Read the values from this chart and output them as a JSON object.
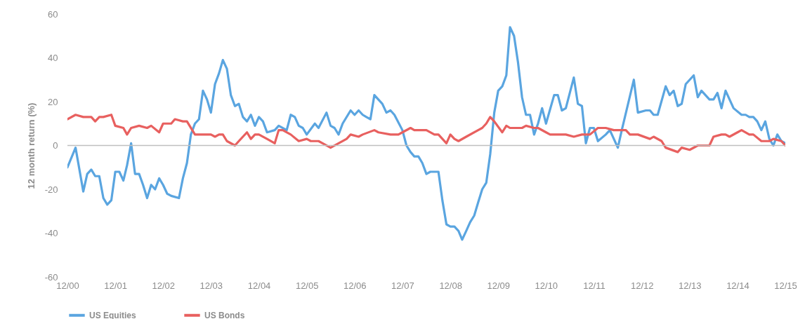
{
  "chart_data": {
    "type": "line",
    "ylabel": "12 month return (%)",
    "xlim": [
      "2000-12",
      "2015-12"
    ],
    "xticks": [
      {
        "value": "2000-12",
        "label": "12/00"
      },
      {
        "value": "2001-12",
        "label": "12/01"
      },
      {
        "value": "2002-12",
        "label": "12/02"
      },
      {
        "value": "2003-12",
        "label": "12/03"
      },
      {
        "value": "2004-12",
        "label": "12/04"
      },
      {
        "value": "2005-12",
        "label": "12/05"
      },
      {
        "value": "2006-12",
        "label": "12/06"
      },
      {
        "value": "2007-12",
        "label": "12/07"
      },
      {
        "value": "2008-12",
        "label": "12/08"
      },
      {
        "value": "2009-12",
        "label": "12/09"
      },
      {
        "value": "2010-12",
        "label": "12/10"
      },
      {
        "value": "2011-12",
        "label": "12/11"
      },
      {
        "value": "2012-12",
        "label": "12/12"
      },
      {
        "value": "2013-12",
        "label": "12/13"
      },
      {
        "value": "2014-12",
        "label": "12/14"
      },
      {
        "value": "2015-12",
        "label": "12/15"
      }
    ],
    "ylim": [
      -60,
      60
    ],
    "yticks": [
      -60,
      -40,
      -20,
      0,
      20,
      40,
      60
    ],
    "grid": false,
    "legend": "bottom",
    "ref_lines": [
      {
        "axis": "y",
        "value": 0,
        "color": "#bfbfbf"
      }
    ],
    "series": [
      {
        "name": "US Equities",
        "color": "#5aa5e0",
        "x": [
          "2000-12",
          "2001-02",
          "2001-04",
          "2001-05",
          "2001-06",
          "2001-07",
          "2001-08",
          "2001-09",
          "2001-10",
          "2001-11",
          "2001-12",
          "2002-01",
          "2002-02",
          "2002-03",
          "2002-04",
          "2002-05",
          "2002-06",
          "2002-07",
          "2002-08",
          "2002-09",
          "2002-10",
          "2002-11",
          "2002-12",
          "2003-01",
          "2003-02",
          "2003-04",
          "2003-05",
          "2003-06",
          "2003-07",
          "2003-08",
          "2003-09",
          "2003-10",
          "2003-11",
          "2003-12",
          "2004-01",
          "2004-02",
          "2004-03",
          "2004-04",
          "2004-05",
          "2004-06",
          "2004-07",
          "2004-08",
          "2004-09",
          "2004-10",
          "2004-11",
          "2004-12",
          "2005-01",
          "2005-02",
          "2005-04",
          "2005-05",
          "2005-07",
          "2005-08",
          "2005-09",
          "2005-10",
          "2005-11",
          "2005-12",
          "2006-02",
          "2006-03",
          "2006-05",
          "2006-06",
          "2006-07",
          "2006-08",
          "2006-09",
          "2006-11",
          "2006-12",
          "2007-01",
          "2007-02",
          "2007-03",
          "2007-04",
          "2007-05",
          "2007-07",
          "2007-08",
          "2007-09",
          "2007-10",
          "2007-12",
          "2008-01",
          "2008-02",
          "2008-03",
          "2008-04",
          "2008-05",
          "2008-06",
          "2008-07",
          "2008-09",
          "2008-10",
          "2008-11",
          "2008-12",
          "2009-01",
          "2009-02",
          "2009-03",
          "2009-04",
          "2009-05",
          "2009-06",
          "2009-07",
          "2009-08",
          "2009-09",
          "2009-10",
          "2009-11",
          "2009-12",
          "2010-01",
          "2010-02",
          "2010-03",
          "2010-04",
          "2010-05",
          "2010-06",
          "2010-07",
          "2010-08",
          "2010-09",
          "2010-10",
          "2010-11",
          "2010-12",
          "2011-02",
          "2011-03",
          "2011-04",
          "2011-05",
          "2011-07",
          "2011-08",
          "2011-09",
          "2011-10",
          "2011-11",
          "2011-12",
          "2012-01",
          "2012-03",
          "2012-04",
          "2012-06",
          "2012-07",
          "2012-10",
          "2012-11",
          "2013-01",
          "2013-02",
          "2013-03",
          "2013-04",
          "2013-06",
          "2013-07",
          "2013-08",
          "2013-09",
          "2013-10",
          "2013-11",
          "2014-01",
          "2014-02",
          "2014-03",
          "2014-05",
          "2014-06",
          "2014-07",
          "2014-08",
          "2014-09",
          "2014-11",
          "2015-01",
          "2015-02",
          "2015-03",
          "2015-04",
          "2015-05",
          "2015-06",
          "2015-07",
          "2015-08",
          "2015-09",
          "2015-10",
          "2015-11",
          "2015-12"
        ],
        "values": [
          -10,
          -1,
          -21,
          -13,
          -11,
          -14,
          -14,
          -24,
          -27,
          -25,
          -12,
          -12,
          -16,
          -9,
          1,
          -13,
          -13,
          -18,
          -24,
          -18,
          -20,
          -15,
          -18,
          -22,
          -23,
          -24,
          -15,
          -8,
          5,
          10,
          12,
          25,
          21,
          15,
          28,
          33,
          39,
          35,
          23,
          18,
          19,
          13,
          11,
          14,
          9,
          13,
          11,
          6,
          7,
          9,
          7,
          14,
          13,
          9,
          8,
          5,
          10,
          8,
          15,
          9,
          8,
          5,
          10,
          16,
          14,
          16,
          14,
          13,
          12,
          23,
          19,
          15,
          16,
          14,
          7,
          0,
          -3,
          -5,
          -5,
          -8,
          -13,
          -12,
          -12,
          -25,
          -36,
          -37,
          -37,
          -39,
          -43,
          -39,
          -35,
          -32,
          -26,
          -20,
          -17,
          -4,
          15,
          25,
          27,
          32,
          54,
          50,
          38,
          22,
          14,
          14,
          5,
          10,
          17,
          10,
          23,
          23,
          16,
          17,
          31,
          19,
          18,
          1,
          8,
          8,
          2,
          5,
          7,
          -1,
          7,
          30,
          15,
          16,
          16,
          14,
          14,
          27,
          23,
          25,
          18,
          19,
          28,
          32,
          22,
          25,
          21,
          21,
          24,
          17,
          25,
          17,
          14,
          14,
          13,
          13,
          11,
          7,
          11,
          3,
          0,
          5,
          2,
          1
        ]
      },
      {
        "name": "US Bonds",
        "color": "#e8605f",
        "x": [
          "2000-12",
          "2001-02",
          "2001-04",
          "2001-06",
          "2001-07",
          "2001-08",
          "2001-09",
          "2001-11",
          "2001-12",
          "2002-02",
          "2002-03",
          "2002-04",
          "2002-06",
          "2002-08",
          "2002-09",
          "2002-11",
          "2002-12",
          "2003-02",
          "2003-03",
          "2003-05",
          "2003-06",
          "2003-08",
          "2003-10",
          "2003-12",
          "2004-01",
          "2004-02",
          "2004-03",
          "2004-04",
          "2004-06",
          "2004-07",
          "2004-09",
          "2004-10",
          "2004-11",
          "2004-12",
          "2005-02",
          "2005-04",
          "2005-05",
          "2005-06",
          "2005-08",
          "2005-10",
          "2005-12",
          "2006-01",
          "2006-03",
          "2006-04",
          "2006-06",
          "2006-08",
          "2006-10",
          "2006-11",
          "2007-01",
          "2007-02",
          "2007-05",
          "2007-06",
          "2007-09",
          "2007-11",
          "2007-12",
          "2008-02",
          "2008-03",
          "2008-06",
          "2008-08",
          "2008-09",
          "2008-11",
          "2008-12",
          "2009-01",
          "2009-02",
          "2009-04",
          "2009-07",
          "2009-08",
          "2009-09",
          "2009-10",
          "2009-11",
          "2010-01",
          "2010-02",
          "2010-03",
          "2010-04",
          "2010-06",
          "2010-07",
          "2010-09",
          "2010-10",
          "2010-12",
          "2011-01",
          "2011-04",
          "2011-05",
          "2011-07",
          "2011-09",
          "2011-11",
          "2012-01",
          "2012-03",
          "2012-05",
          "2012-06",
          "2012-08",
          "2012-09",
          "2012-11",
          "2013-02",
          "2013-03",
          "2013-05",
          "2013-06",
          "2013-09",
          "2013-10",
          "2013-12",
          "2014-02",
          "2014-05",
          "2014-06",
          "2014-08",
          "2014-09",
          "2014-10",
          "2014-12",
          "2015-01",
          "2015-03",
          "2015-04",
          "2015-06",
          "2015-07",
          "2015-08",
          "2015-09",
          "2015-11",
          "2015-12"
        ],
        "values": [
          12,
          14,
          13,
          13,
          11,
          13,
          13,
          14,
          9,
          8,
          5,
          8,
          9,
          8,
          9,
          6,
          10,
          10,
          12,
          11,
          11,
          5,
          5,
          5,
          4,
          5,
          5,
          2,
          0,
          2,
          6,
          3,
          5,
          5,
          3,
          1,
          7,
          7,
          5,
          2,
          3,
          2,
          2,
          1,
          -1,
          1,
          3,
          5,
          4,
          5,
          7,
          6,
          5,
          5,
          6,
          8,
          7,
          7,
          5,
          5,
          1,
          5,
          3,
          2,
          4,
          7,
          8,
          10,
          13,
          11,
          6,
          9,
          8,
          8,
          8,
          9,
          8,
          8,
          6,
          5,
          5,
          5,
          4,
          5,
          5,
          8,
          8,
          7,
          7,
          7,
          5,
          5,
          3,
          4,
          2,
          -1,
          -3,
          -1,
          -2,
          0,
          0,
          4,
          5,
          5,
          4,
          6,
          7,
          5,
          5,
          2,
          2,
          2,
          3,
          2,
          0
        ]
      }
    ]
  }
}
